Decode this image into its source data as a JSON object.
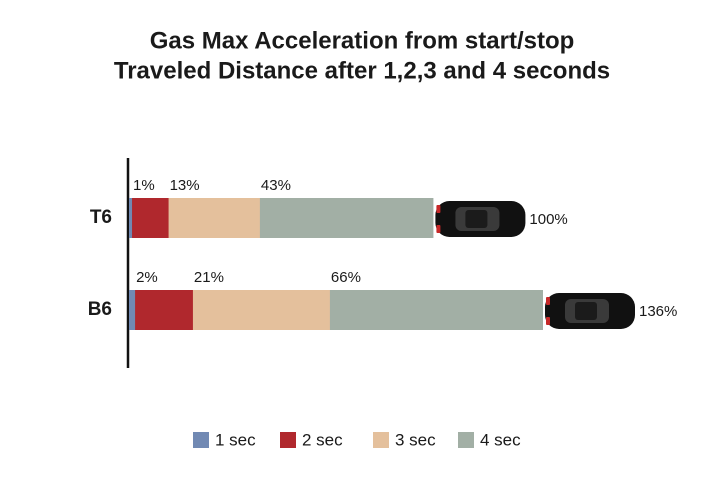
{
  "chart_data": {
    "type": "overlap-bar",
    "title": "Gas Max Acceleration from start/stop",
    "subtitle": "Traveled Distance after 1,2,3 and 4 seconds",
    "categories": [
      "T6",
      "B6"
    ],
    "series": [
      {
        "name": "1 sec",
        "color": "#7189b3",
        "values": [
          1,
          2
        ],
        "value_labels": [
          "1%",
          "2%"
        ]
      },
      {
        "name": "2 sec",
        "color": "#b0282d",
        "values": [
          13,
          21
        ],
        "value_labels": [
          "13%",
          "21%"
        ]
      },
      {
        "name": "3 sec",
        "color": "#e4c09c",
        "values": [
          43,
          66
        ],
        "value_labels": [
          "43%",
          "66%"
        ]
      },
      {
        "name": "4 sec",
        "color": "#a2afa5",
        "values": [
          100,
          136
        ],
        "value_labels": [
          "100%",
          "136%"
        ]
      }
    ]
  }
}
